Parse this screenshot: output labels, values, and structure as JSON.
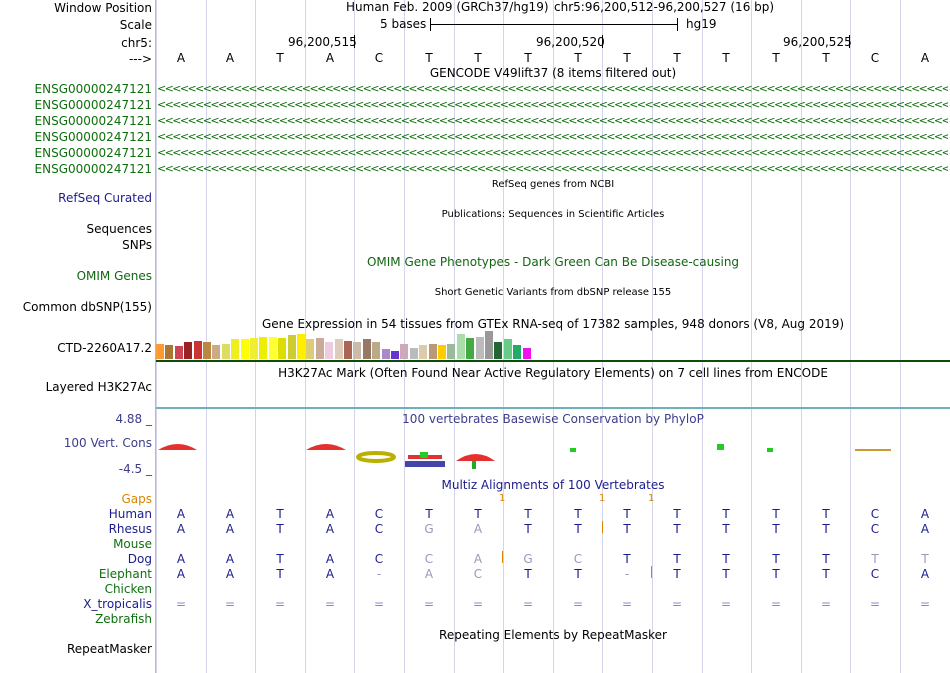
{
  "colors": {
    "gene_green": "#0f6f0f",
    "refseq_blue": "#1c1c8c",
    "omim_green": "#116611",
    "gaps_orange": "#d98500",
    "species_blue": "#1c1c8c",
    "species_green": "#0f6f0f",
    "phylop_label": "#3c3c8c"
  },
  "labels": {
    "window_position": "Window Position",
    "scale": "Scale",
    "chr": "chr5:",
    "arrow": "--->",
    "refseq": "RefSeq Curated",
    "sequences": "Sequences",
    "snps": "SNPs",
    "omim": "OMIM Genes",
    "dbsnp": "Common dbSNP(155)",
    "ctd": "CTD-2260A17.2",
    "h3k27ac": "Layered H3K27Ac",
    "phylop_max": "4.88 _",
    "phylop_name": "100 Vert. Cons",
    "phylop_min": "-4.5 _",
    "gaps": "Gaps",
    "repeatmasker": "RepeatMasker"
  },
  "header": {
    "assembly": "Human Feb. 2009 (GRCh37/hg19)",
    "position": "chr5:96,200,512-96,200,527 (16 bp)",
    "scale_text": "5 bases",
    "scale_db": "hg19",
    "coords": [
      "96,200,515",
      "96,200,520",
      "96,200,525"
    ]
  },
  "bases": [
    "A",
    "A",
    "T",
    "A",
    "C",
    "T",
    "T",
    "T",
    "T",
    "T",
    "T",
    "T",
    "T",
    "T",
    "C",
    "A"
  ],
  "genes": {
    "title": "GENCODE V49lift37 (8 items filtered out)",
    "names": [
      "ENSG00000247121",
      "ENSG00000247121",
      "ENSG00000247121",
      "ENSG00000247121",
      "ENSG00000247121",
      "ENSG00000247121"
    ],
    "arrows": "<<<<<<<<<<<<<<<<<<<<<<<<<<<<<<<<<<<<<<<<<<<<<<<<<<<<<<<<<<<<<<<<<<<<<<<<<<<<<<<<<<<<<<<<<<<<<<<<<<<<<<<<<<<<<<<<<<<<<<<<<<<<<<<<<<<<<<<<<<<<<<<<<<<<<<<<<<<<<<<<<<<<<<"
  },
  "tracks": {
    "refseq_title": "RefSeq genes from NCBI",
    "publications_title": "Publications: Sequences in Scientific Articles",
    "omim_title": "OMIM Gene Phenotypes - Dark Green Can Be Disease-causing",
    "dbsnp_title": "Short Genetic Variants from dbSNP release 155",
    "gtex_title": "Gene Expression in 54 tissues from GTEx RNA-seq of 17382 samples, 948 donors (V8, Aug 2019)",
    "h3k27ac_title": "H3K27Ac Mark (Often Found Near Active Regulatory Elements) on 7 cell lines from ENCODE",
    "phylop_title": "100 vertebrates Basewise Conservation by PhyloP",
    "multiz_title": "Multiz Alignments of 100 Vertebrates",
    "repeat_title": "Repeating Elements by RepeatMasker"
  },
  "gtex_colors": [
    "#ff9933",
    "#aa7733",
    "#cc4455",
    "#992222",
    "#cc3333",
    "#bb8844",
    "#ccaa88",
    "#dddd66",
    "#eeee22",
    "#ffff00",
    "#eeee33",
    "#eeee00",
    "#ffff33",
    "#dddd00",
    "#cccc33",
    "#ffee00",
    "#ddcc77",
    "#ccaa99",
    "#eeccdd",
    "#ddccbb",
    "#aa6655",
    "#ccbbaa",
    "#997766",
    "#bbaa88",
    "#aa88cc",
    "#6633cc",
    "#ccaabb",
    "#bbbbbb",
    "#ddccaa",
    "#bb9977",
    "#ffcc00",
    "#99bb99",
    "#aaddaa",
    "#44aa44",
    "#bbbbbb",
    "#999999",
    "#226633",
    "#66cc88",
    "#22aa66",
    "#ee11ee"
  ],
  "gtex_values": [
    0.55,
    0.5,
    0.45,
    0.6,
    0.65,
    0.6,
    0.5,
    0.55,
    0.7,
    0.7,
    0.75,
    0.8,
    0.8,
    0.75,
    0.85,
    0.9,
    0.7,
    0.75,
    0.6,
    0.7,
    0.65,
    0.6,
    0.7,
    0.6,
    0.35,
    0.3,
    0.55,
    0.4,
    0.5,
    0.55,
    0.5,
    0.55,
    0.9,
    0.75,
    0.8,
    1.0,
    0.6,
    0.7,
    0.5,
    0.4
  ],
  "multiz": {
    "gap_marks": [
      "1",
      "1",
      "1"
    ],
    "species": [
      {
        "name": "Human",
        "seq": [
          "A",
          "A",
          "T",
          "A",
          "C",
          "T",
          "T",
          "T",
          "T",
          "T",
          "T",
          "T",
          "T",
          "T",
          "C",
          "A"
        ]
      },
      {
        "name": "Rhesus",
        "seq": [
          "A",
          "A",
          "T",
          "A",
          "C",
          "G",
          "A",
          "T",
          "T",
          "T",
          "T",
          "T",
          "T",
          "T",
          "C",
          "A"
        ]
      },
      {
        "name": "Mouse",
        "seq": [
          "",
          "",
          "",
          "",
          "",
          "",
          "",
          "",
          "",
          "",
          "",
          "",
          "",
          "",
          "",
          ""
        ]
      },
      {
        "name": "Dog",
        "seq": [
          "A",
          "A",
          "T",
          "A",
          "C",
          "C",
          "A",
          "G",
          "C",
          "T",
          "T",
          "T",
          "T",
          "T",
          "T",
          "T"
        ]
      },
      {
        "name": "Elephant",
        "seq": [
          "A",
          "A",
          "T",
          "A",
          "-",
          "A",
          "C",
          "T",
          "T",
          "-",
          "T",
          "T",
          "T",
          "T",
          "C",
          "A"
        ]
      },
      {
        "name": "Chicken",
        "seq": [
          "",
          "",
          "",
          "",
          "",
          "",
          "",
          "",
          "",
          "",
          "",
          "",
          "",
          "",
          "",
          ""
        ]
      },
      {
        "name": "X_tropicalis",
        "seq": [
          "=",
          "=",
          "=",
          "=",
          "=",
          "=",
          "=",
          "=",
          "=",
          "=",
          "=",
          "=",
          "=",
          "=",
          "=",
          "="
        ]
      },
      {
        "name": "Zebrafish",
        "seq": [
          "",
          "",
          "",
          "",
          "",
          "",
          "",
          "",
          "",
          "",
          "",
          "",
          "",
          "",
          "",
          ""
        ]
      }
    ]
  }
}
